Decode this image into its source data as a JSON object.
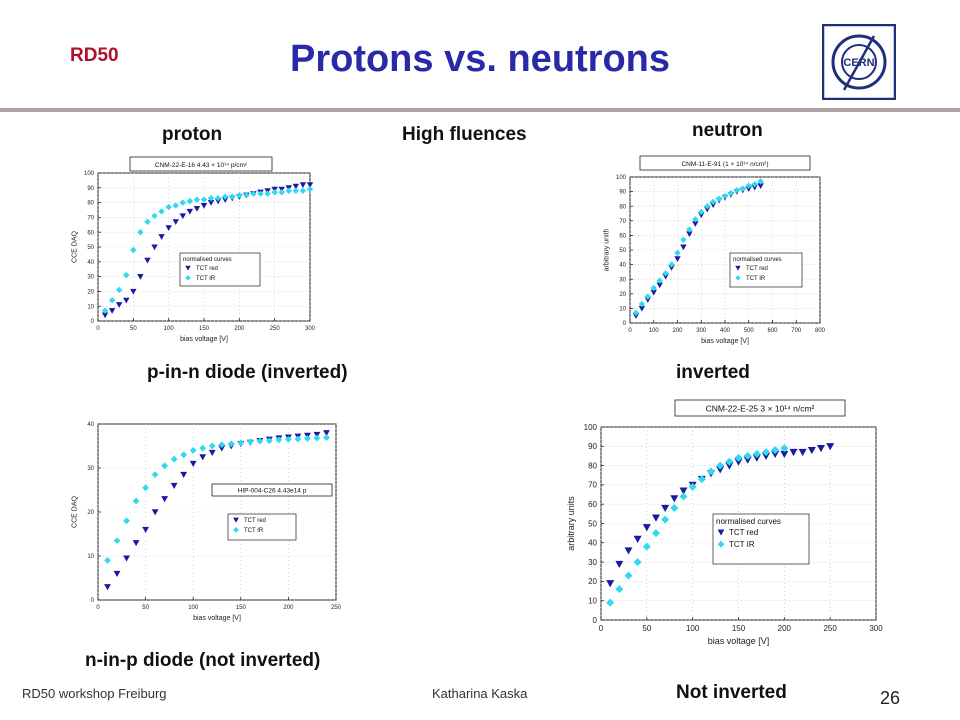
{
  "header": {
    "brand": "RD50",
    "title": "Protons vs. neutrons",
    "logo_text": "CERN"
  },
  "labels": {
    "proton": "proton",
    "high_fluences": "High fluences",
    "neutron": "neutron",
    "pin": "p-in-n diode (inverted)",
    "inverted": "inverted",
    "nip": "n-in-p diode (not inverted)",
    "not_inverted": "Not inverted"
  },
  "footer": {
    "left": "RD50 workshop Freiburg",
    "center": "Katharina Kaska",
    "page": "26"
  },
  "colors": {
    "title": "#2a2aa6",
    "brand": "#b0102a",
    "red_marker": "#1a1aa0",
    "ir_marker": "#30d8f0"
  },
  "chart_data": [
    {
      "type": "scatter",
      "title": "CNM-22-E-16 4.43 × 10¹⁴ p/cm²",
      "xlabel": "bias voltage [V]",
      "ylabel": "CCE DAQ",
      "xlim": [
        0,
        300
      ],
      "ylim": [
        0,
        100
      ],
      "xticks": [
        0,
        50,
        100,
        150,
        200,
        250,
        300
      ],
      "yticks": [
        0,
        10,
        20,
        30,
        40,
        50,
        60,
        70,
        80,
        90,
        100
      ],
      "legend_title": "normalised curves",
      "legend_position": "center-right",
      "series": [
        {
          "name": "TCT red",
          "marker": "triangle-down",
          "x": [
            10,
            20,
            30,
            40,
            50,
            60,
            70,
            80,
            90,
            100,
            110,
            120,
            130,
            140,
            150,
            160,
            170,
            180,
            190,
            200,
            210,
            220,
            230,
            240,
            250,
            260,
            270,
            280,
            290,
            300
          ],
          "y": [
            4,
            7,
            11,
            14,
            20,
            30,
            41,
            50,
            57,
            63,
            67,
            71,
            74,
            76,
            78,
            80,
            81,
            82,
            83,
            84,
            85,
            86,
            87,
            88,
            89,
            89,
            90,
            91,
            92,
            92
          ]
        },
        {
          "name": "TCT IR",
          "marker": "diamond",
          "x": [
            10,
            20,
            30,
            40,
            50,
            60,
            70,
            80,
            90,
            100,
            110,
            120,
            130,
            140,
            150,
            160,
            170,
            180,
            190,
            200,
            210,
            220,
            230,
            240,
            250,
            260,
            270,
            280,
            290,
            300
          ],
          "y": [
            7,
            14,
            21,
            31,
            48,
            60,
            67,
            71,
            74,
            77,
            78,
            80,
            81,
            82,
            82,
            83,
            83,
            84,
            84,
            85,
            85,
            86,
            86,
            86,
            87,
            87,
            88,
            88,
            88,
            89
          ]
        }
      ]
    },
    {
      "type": "scatter",
      "title": "CNM-11-E-91 (1 × 10¹⁴ n/cm²)",
      "xlabel": "bias voltage [V]",
      "ylabel": "arbitrary unith",
      "xlim": [
        0,
        800
      ],
      "ylim": [
        0,
        100
      ],
      "xticks": [
        0,
        100,
        200,
        300,
        400,
        500,
        600,
        700,
        800
      ],
      "yticks": [
        0,
        10,
        20,
        30,
        40,
        50,
        60,
        70,
        80,
        90,
        100
      ],
      "legend_title": "normalised curves",
      "legend_position": "center-right",
      "series": [
        {
          "name": "TCT red",
          "marker": "triangle-down",
          "x": [
            25,
            50,
            75,
            100,
            125,
            150,
            175,
            200,
            225,
            250,
            275,
            300,
            325,
            350,
            375,
            400,
            425,
            450,
            475,
            500,
            525,
            550
          ],
          "y": [
            5,
            10,
            16,
            21,
            26,
            32,
            38,
            44,
            52,
            61,
            68,
            74,
            78,
            81,
            84,
            86,
            88,
            90,
            91,
            92,
            93,
            94
          ]
        },
        {
          "name": "TCT IR",
          "marker": "diamond",
          "x": [
            25,
            50,
            75,
            100,
            125,
            150,
            175,
            200,
            225,
            250,
            275,
            300,
            325,
            350,
            375,
            400,
            425,
            450,
            475,
            500,
            525,
            550
          ],
          "y": [
            7,
            13,
            18,
            24,
            29,
            34,
            40,
            48,
            57,
            64,
            71,
            76,
            80,
            83,
            85,
            87,
            89,
            91,
            92,
            94,
            95,
            97
          ]
        }
      ]
    },
    {
      "type": "scatter",
      "title": "HIP-004-C26 4.43e14 p",
      "xlabel": "bias voltage [V]",
      "ylabel": "CCE DAQ",
      "xlim": [
        0,
        250
      ],
      "ylim": [
        0,
        40
      ],
      "xticks": [
        0,
        50,
        100,
        150,
        200,
        250
      ],
      "yticks": [
        0,
        10,
        20,
        30,
        40
      ],
      "legend_position": "center-right",
      "series": [
        {
          "name": "TCT red",
          "marker": "triangle-down",
          "x": [
            10,
            20,
            30,
            40,
            50,
            60,
            70,
            80,
            90,
            100,
            110,
            120,
            130,
            140,
            150,
            160,
            170,
            180,
            190,
            200,
            210,
            220,
            230,
            240
          ],
          "y": [
            3,
            6,
            9.5,
            13,
            16,
            20,
            23,
            26,
            28.5,
            31,
            32.5,
            33.5,
            34.5,
            35,
            35.5,
            35.8,
            36.2,
            36.5,
            36.8,
            37,
            37.2,
            37.4,
            37.6,
            38
          ]
        },
        {
          "name": "TCT IR",
          "marker": "diamond",
          "x": [
            10,
            20,
            30,
            40,
            50,
            60,
            70,
            80,
            90,
            100,
            110,
            120,
            130,
            140,
            150,
            160,
            170,
            180,
            190,
            200,
            210,
            220,
            230,
            240
          ],
          "y": [
            9,
            13.5,
            18,
            22.5,
            25.5,
            28.5,
            30.5,
            32,
            33,
            34,
            34.5,
            35,
            35.3,
            35.5,
            35.7,
            36,
            36.1,
            36.2,
            36.4,
            36.5,
            36.6,
            36.7,
            36.8,
            36.9
          ]
        }
      ]
    },
    {
      "type": "scatter",
      "title": "CNM-22-E-25 3 × 10¹⁴ n/cm²",
      "xlabel": "bias voltage [V]",
      "ylabel": "arbitrary units",
      "xlim": [
        0,
        300
      ],
      "ylim": [
        0,
        100
      ],
      "xticks": [
        0,
        50,
        100,
        150,
        200,
        250,
        300
      ],
      "yticks": [
        0,
        10,
        20,
        30,
        40,
        50,
        60,
        70,
        80,
        90,
        100
      ],
      "legend_title": "normalised curves",
      "legend_position": "bottom-right",
      "series": [
        {
          "name": "TCT red",
          "marker": "triangle-down",
          "x": [
            10,
            20,
            30,
            40,
            50,
            60,
            70,
            80,
            90,
            100,
            110,
            120,
            130,
            140,
            150,
            160,
            170,
            180,
            190,
            200,
            210,
            220,
            230,
            240,
            250
          ],
          "y": [
            19,
            29,
            36,
            42,
            48,
            53,
            58,
            63,
            67,
            70,
            73,
            76,
            78,
            80,
            82,
            83,
            84,
            85,
            86,
            86,
            87,
            87,
            88,
            89,
            90
          ]
        },
        {
          "name": "TCT IR",
          "marker": "diamond",
          "x": [
            10,
            20,
            30,
            40,
            50,
            60,
            70,
            80,
            90,
            100,
            110,
            120,
            130,
            140,
            150,
            160,
            170,
            180,
            190,
            200
          ],
          "y": [
            9,
            16,
            23,
            30,
            38,
            45,
            52,
            58,
            64,
            69,
            73,
            77,
            80,
            82,
            84,
            85,
            86,
            87,
            88,
            89
          ]
        }
      ]
    }
  ]
}
